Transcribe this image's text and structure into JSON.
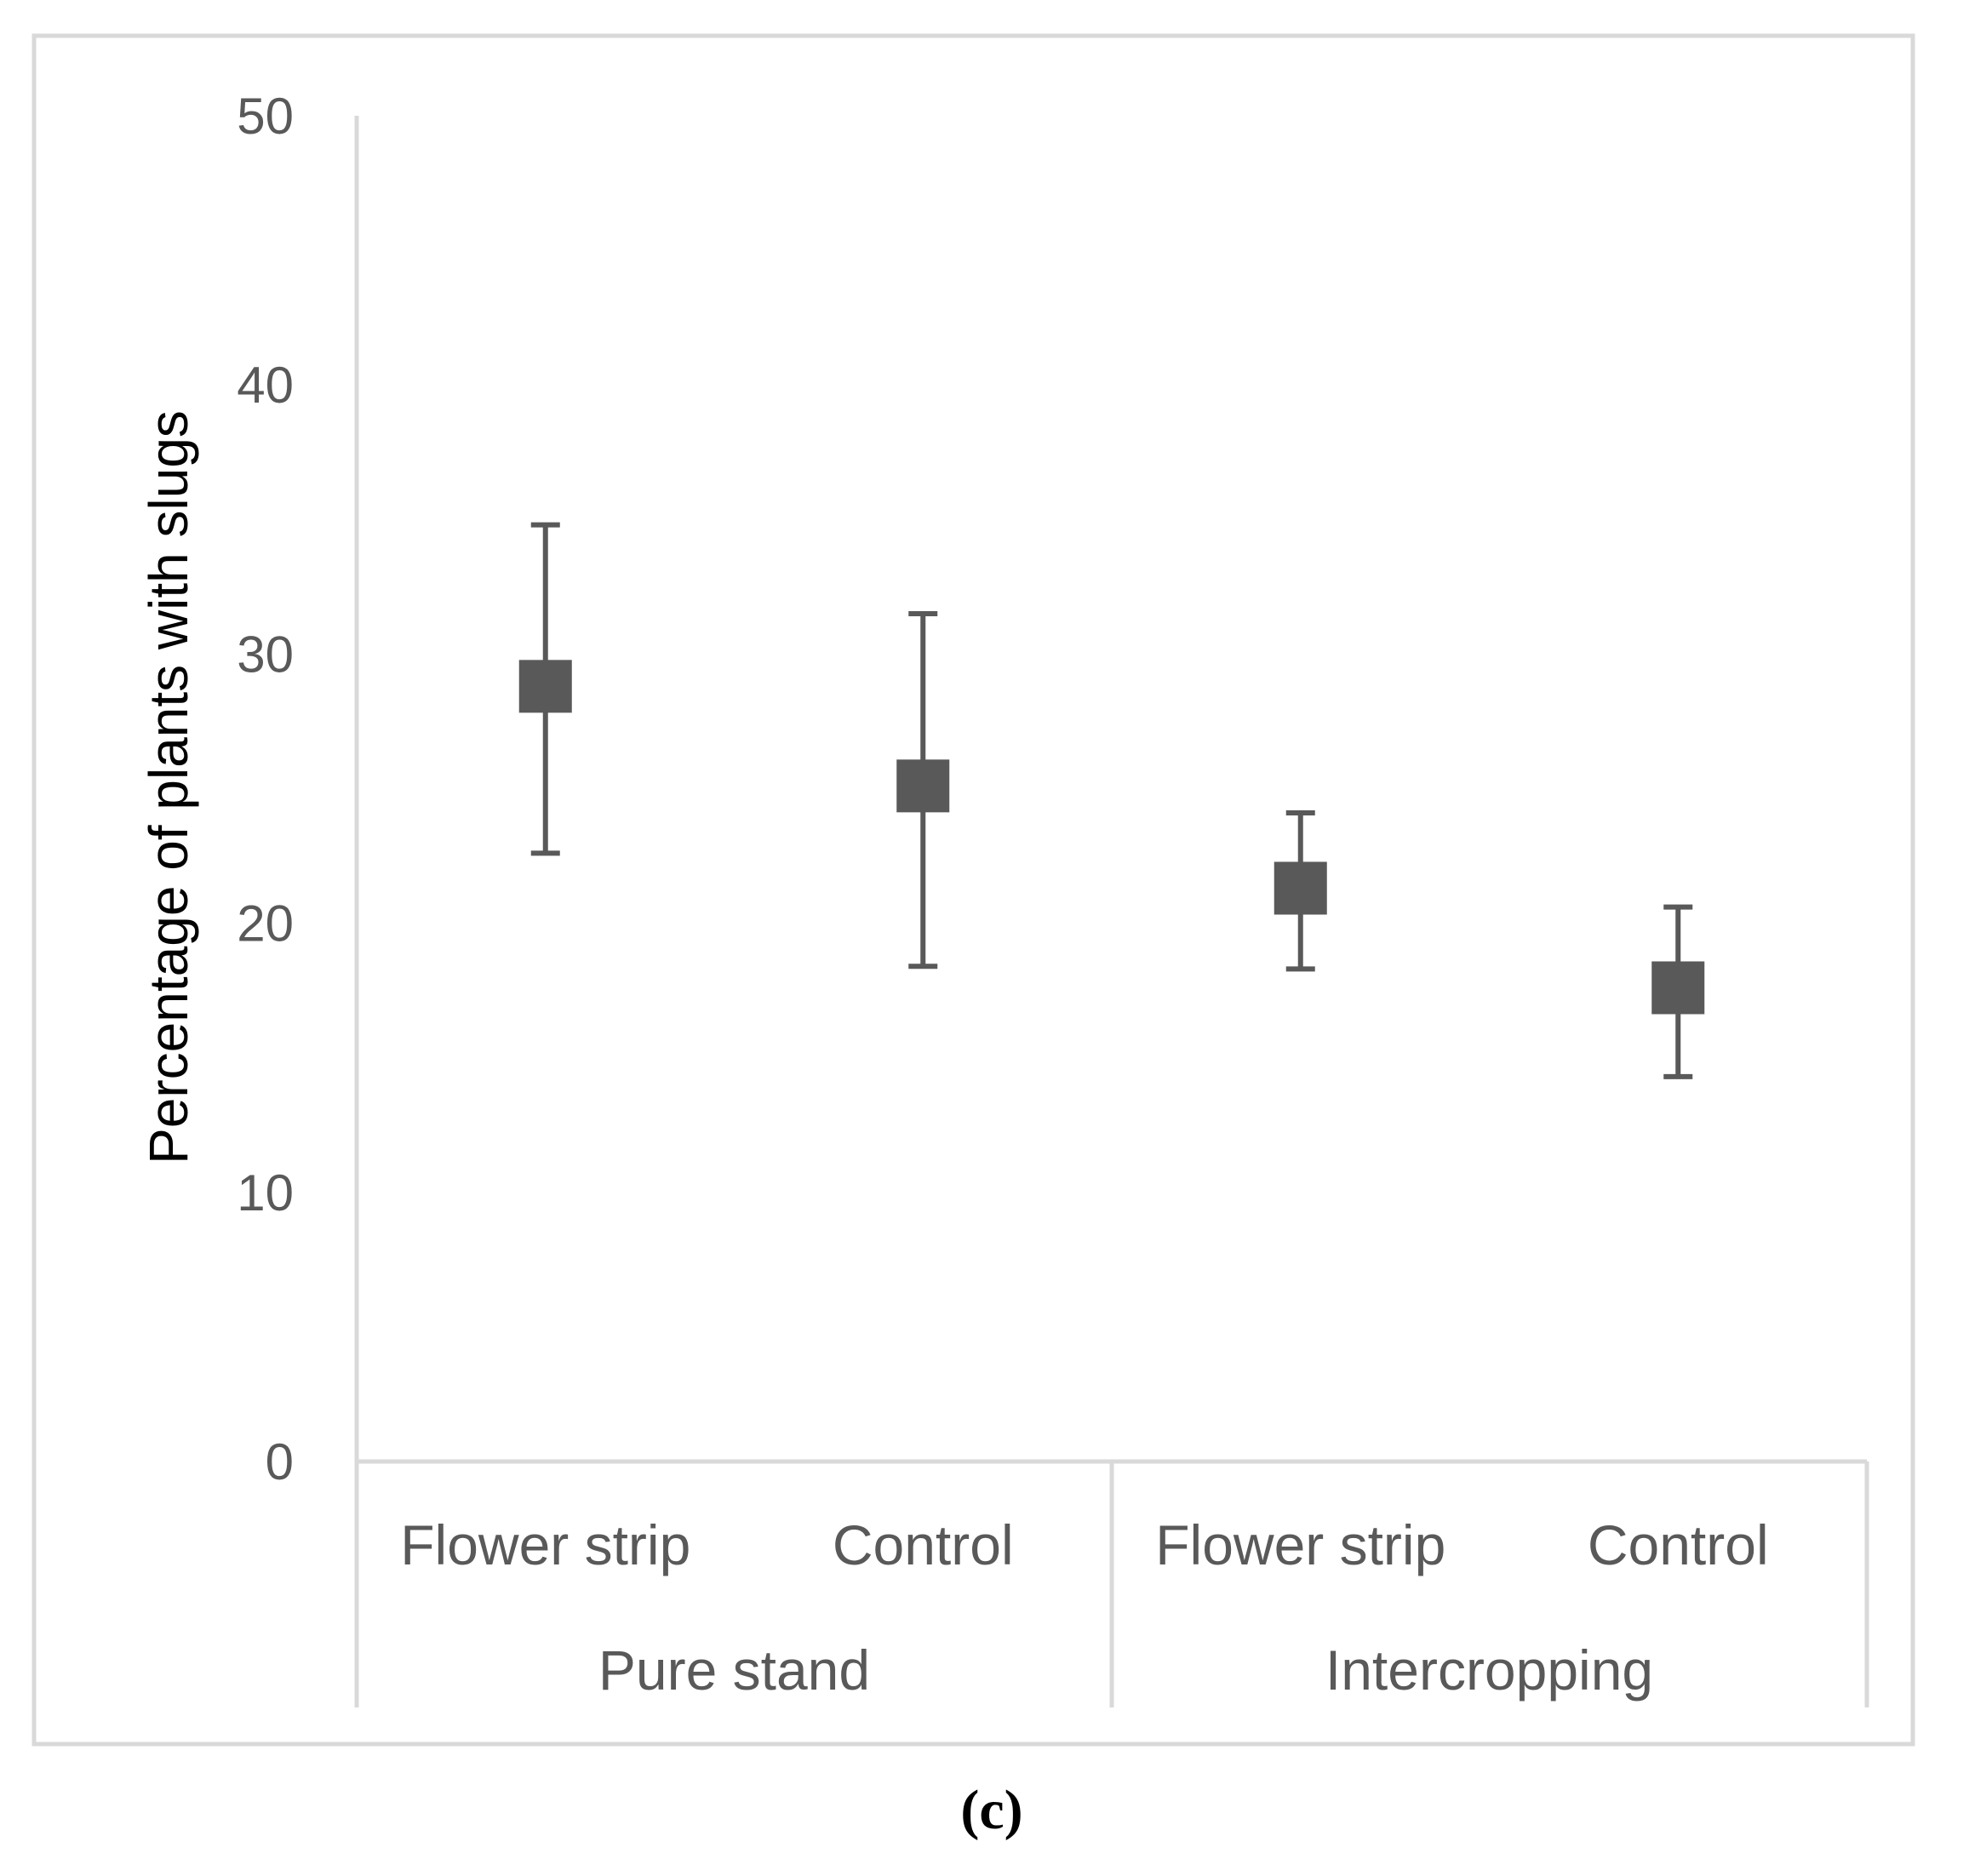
{
  "chart_data": {
    "type": "scatter",
    "title": "",
    "ylabel": "Percentage of plants with slugs",
    "xlabel": "",
    "ylim": [
      0,
      50
    ],
    "yticks": [
      0,
      10,
      20,
      30,
      40,
      50
    ],
    "grid": false,
    "categories": [
      "Flower strip",
      "Control",
      "Flower strip",
      "Control"
    ],
    "groups": [
      "Pure stand",
      "Intercropping"
    ],
    "points": [
      {
        "group": "Pure stand",
        "category": "Flower strip",
        "value": 28.8,
        "err_low": 22.6,
        "err_high": 34.8
      },
      {
        "group": "Pure stand",
        "category": "Control",
        "value": 25.1,
        "err_low": 18.4,
        "err_high": 31.5
      },
      {
        "group": "Intercropping",
        "category": "Flower strip",
        "value": 21.3,
        "err_low": 18.3,
        "err_high": 24.1
      },
      {
        "group": "Intercropping",
        "category": "Control",
        "value": 17.6,
        "err_low": 14.3,
        "err_high": 20.6
      }
    ],
    "marker": "square",
    "color": "#595959",
    "caption": "(c)"
  }
}
